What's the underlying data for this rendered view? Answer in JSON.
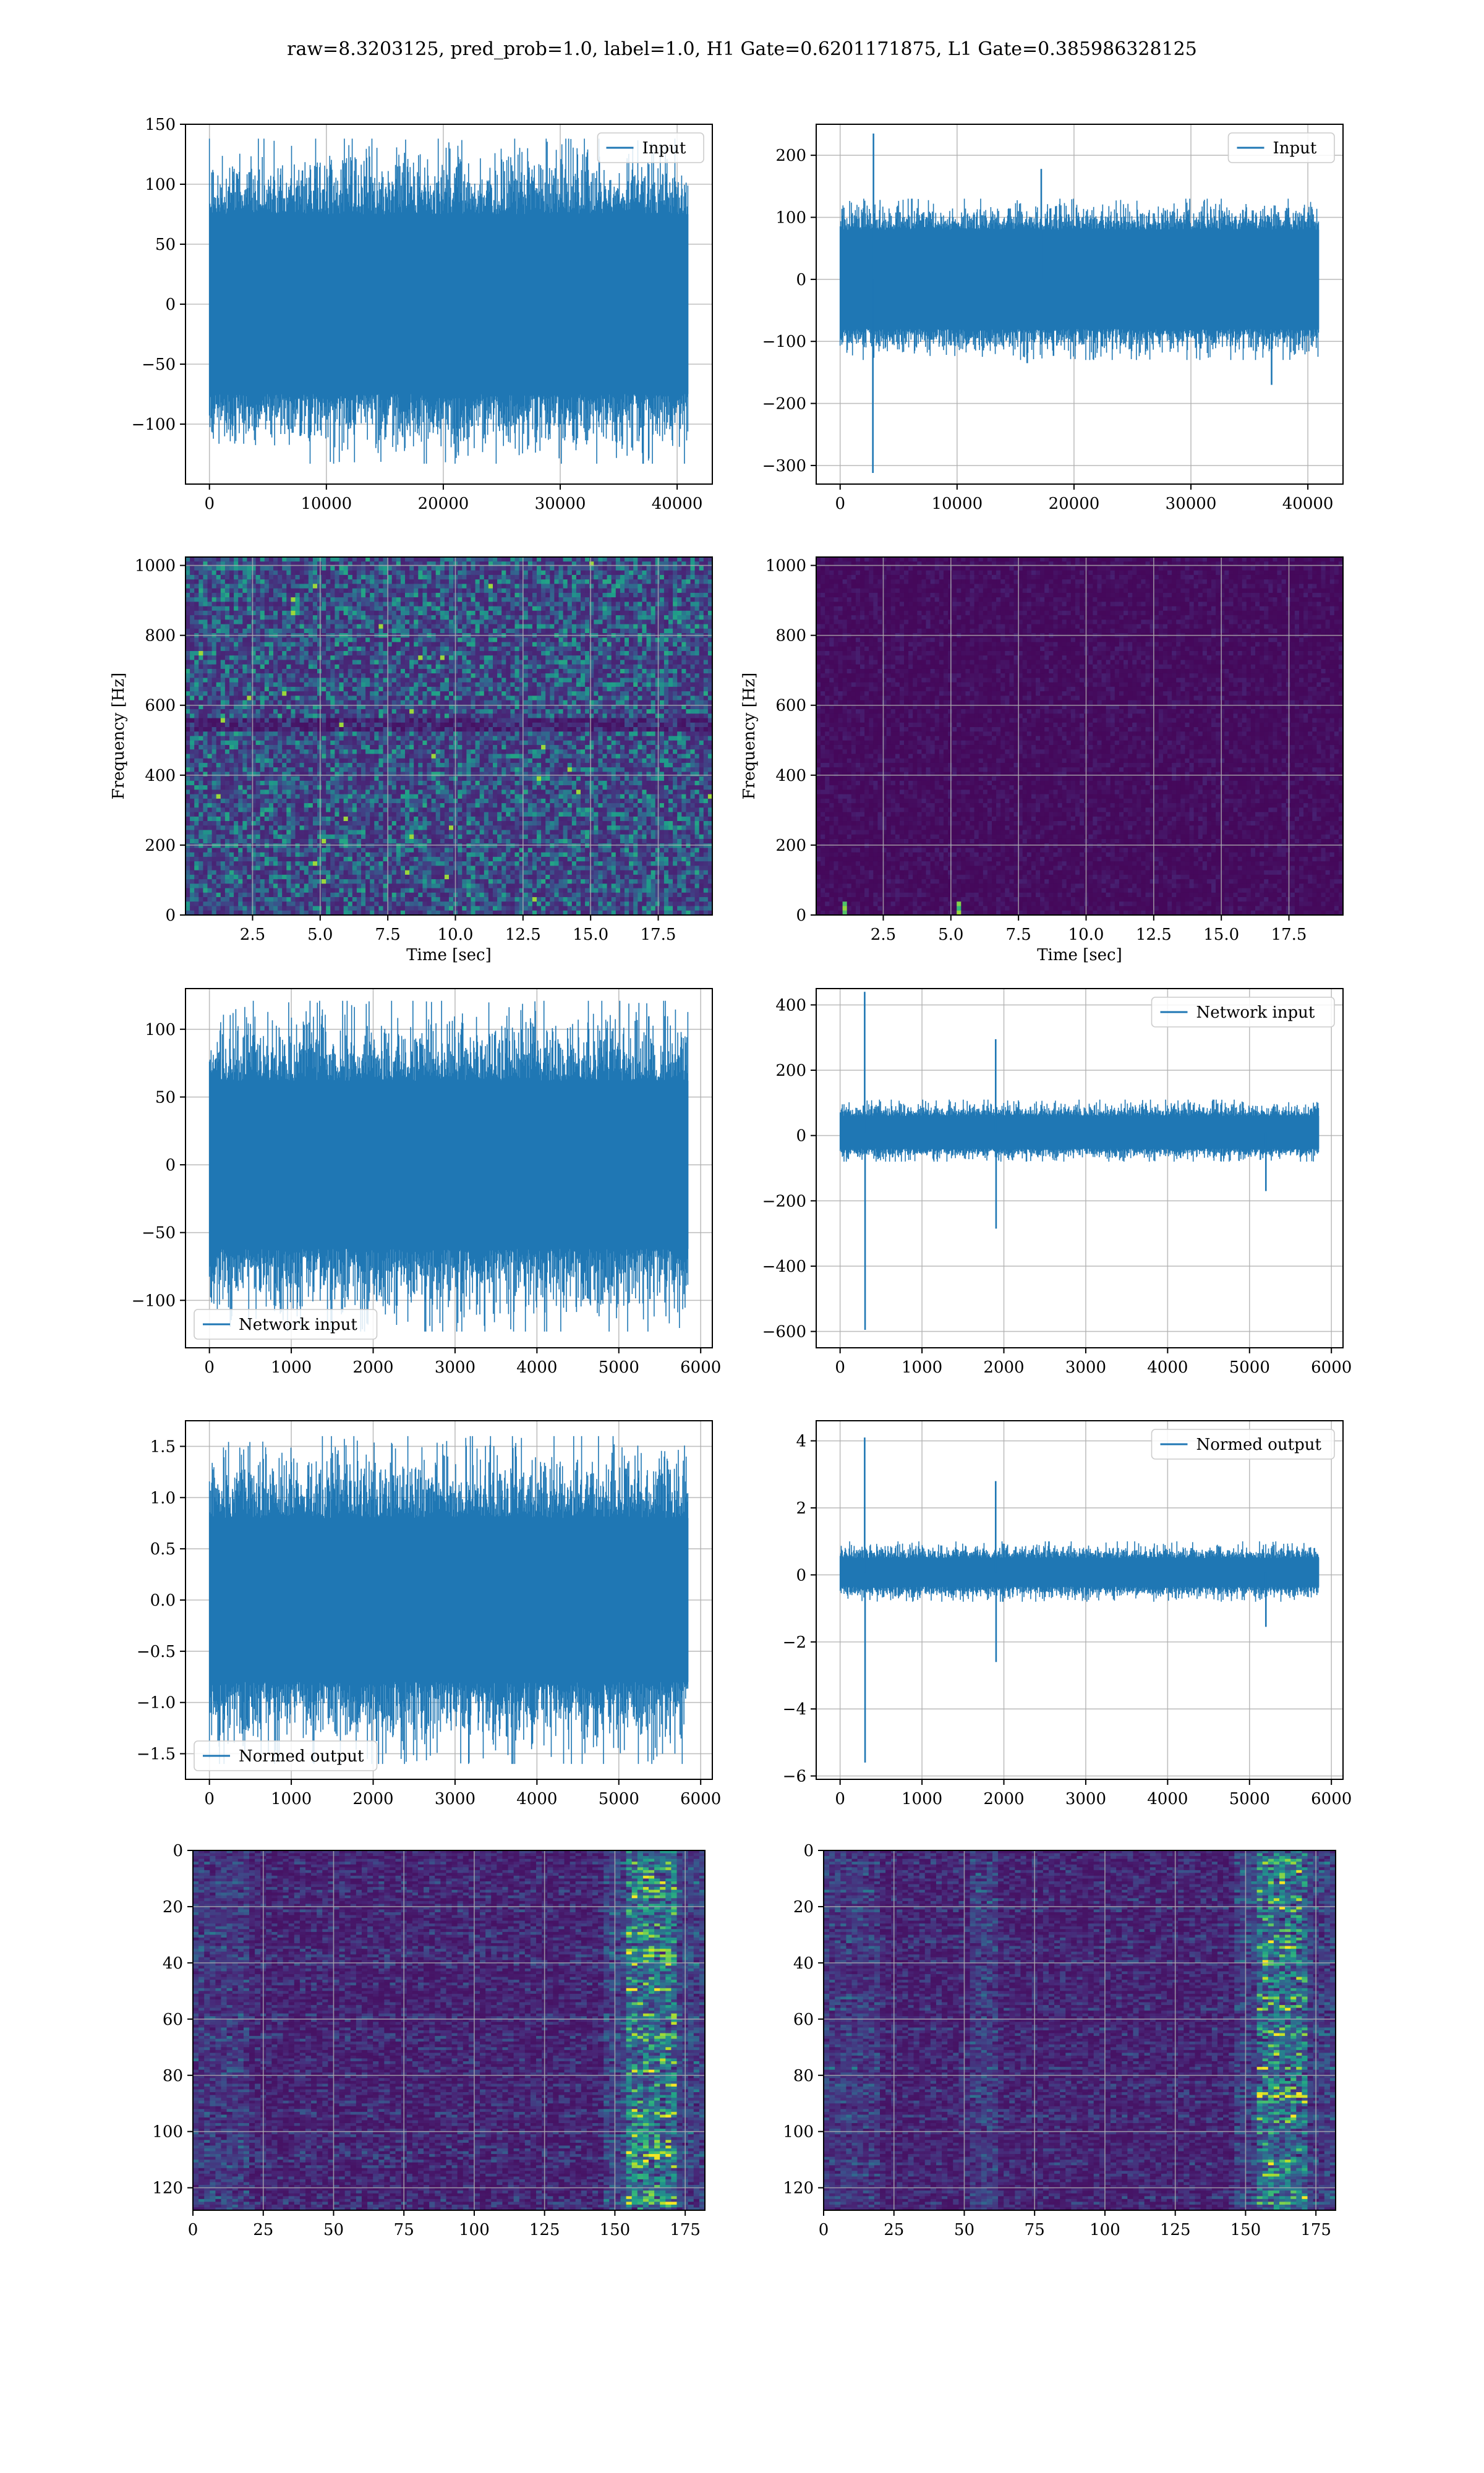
{
  "title": "raw=8.3203125, pred_prob=1.0, label=1.0, H1 Gate=0.6201171875, L1 Gate=0.385986328125",
  "colors": {
    "line": "#1f77b4",
    "grid": "#b0b0b0",
    "axes": "#000000"
  },
  "chart_data": [
    {
      "id": "h1-input",
      "type": "line",
      "x_range": [
        0,
        40960
      ],
      "xlim": [
        -2048,
        43008
      ],
      "ylim": [
        -150,
        150
      ],
      "xticks": [
        0,
        10000,
        20000,
        30000,
        40000
      ],
      "xtick_labels": [
        "0",
        "10000",
        "20000",
        "30000",
        "40000"
      ],
      "yticks": [
        -100,
        -50,
        0,
        50,
        100,
        150
      ],
      "ytick_labels": [
        "−100",
        "−50",
        "0",
        "50",
        "100",
        "150"
      ],
      "envelope": [
        -75,
        75
      ],
      "extremes": [
        -133,
        138
      ],
      "spikes": [],
      "series": [
        {
          "name": "Input"
        }
      ],
      "legend": "upper right",
      "xlabel": "",
      "ylabel": "",
      "grid": true
    },
    {
      "id": "l1-input",
      "type": "line",
      "x_range": [
        0,
        40960
      ],
      "xlim": [
        -2048,
        43008
      ],
      "ylim": [
        -330,
        250
      ],
      "xticks": [
        0,
        10000,
        20000,
        30000,
        40000
      ],
      "xtick_labels": [
        "0",
        "10000",
        "20000",
        "30000",
        "40000"
      ],
      "yticks": [
        -300,
        -200,
        -100,
        0,
        100,
        200
      ],
      "ytick_labels": [
        "−300",
        "−200",
        "−100",
        "0",
        "100",
        "200"
      ],
      "envelope": [
        -80,
        80
      ],
      "extremes": [
        -130,
        130
      ],
      "spikes": [
        [
          2800,
          -312
        ],
        [
          2850,
          235
        ],
        [
          17200,
          178
        ],
        [
          16000,
          -135
        ],
        [
          36900,
          -170
        ]
      ],
      "series": [
        {
          "name": "Input"
        }
      ],
      "legend": "upper right",
      "xlabel": "",
      "ylabel": "",
      "grid": true
    },
    {
      "id": "h1-spectrogram",
      "type": "heatmap",
      "xlim": [
        0.02,
        19.5
      ],
      "ylim": [
        0,
        1024
      ],
      "xticks": [
        2.5,
        5.0,
        7.5,
        10.0,
        12.5,
        15.0,
        17.5
      ],
      "xtick_labels": [
        "2.5",
        "5.0",
        "7.5",
        "10.0",
        "12.5",
        "15.0",
        "17.5"
      ],
      "yticks": [
        0,
        200,
        400,
        600,
        800,
        1000
      ],
      "ytick_labels": [
        "0",
        "200",
        "400",
        "600",
        "800",
        "1000"
      ],
      "xlabel": "Time [sec]",
      "ylabel": "Frequency [Hz]",
      "colormap": "viridis",
      "grid": true
    },
    {
      "id": "l1-spectrogram",
      "type": "heatmap",
      "xlim": [
        0.02,
        19.5
      ],
      "ylim": [
        0,
        1024
      ],
      "xticks": [
        2.5,
        5.0,
        7.5,
        10.0,
        12.5,
        15.0,
        17.5
      ],
      "xtick_labels": [
        "2.5",
        "5.0",
        "7.5",
        "10.0",
        "12.5",
        "15.0",
        "17.5"
      ],
      "yticks": [
        0,
        200,
        400,
        600,
        800,
        1000
      ],
      "ytick_labels": [
        "0",
        "200",
        "400",
        "600",
        "800",
        "1000"
      ],
      "xlabel": "Time [sec]",
      "ylabel": "Frequency [Hz]",
      "colormap": "viridis",
      "grid": true
    },
    {
      "id": "h1-network-input",
      "type": "line",
      "x_range": [
        0,
        5850
      ],
      "xlim": [
        -292,
        6142
      ],
      "ylim": [
        -135,
        130
      ],
      "xticks": [
        0,
        1000,
        2000,
        3000,
        4000,
        5000,
        6000
      ],
      "xtick_labels": [
        "0",
        "1000",
        "2000",
        "3000",
        "4000",
        "5000",
        "6000"
      ],
      "yticks": [
        -100,
        -50,
        0,
        50,
        100
      ],
      "ytick_labels": [
        "−100",
        "−50",
        "0",
        "50",
        "100"
      ],
      "envelope": [
        -62,
        62
      ],
      "extremes": [
        -123,
        121
      ],
      "spikes": [],
      "series": [
        {
          "name": "Network input"
        }
      ],
      "legend": "lower left",
      "xlabel": "",
      "ylabel": "",
      "grid": true
    },
    {
      "id": "l1-network-input",
      "type": "line",
      "x_range": [
        0,
        5850
      ],
      "xlim": [
        -292,
        6142
      ],
      "ylim": [
        -650,
        450
      ],
      "xticks": [
        0,
        1000,
        2000,
        3000,
        4000,
        5000,
        6000
      ],
      "xtick_labels": [
        "0",
        "1000",
        "2000",
        "3000",
        "4000",
        "5000",
        "6000"
      ],
      "yticks": [
        -600,
        -400,
        -200,
        0,
        200,
        400
      ],
      "ytick_labels": [
        "−600",
        "−400",
        "−200",
        "0",
        "200",
        "400"
      ],
      "envelope": [
        -40,
        60
      ],
      "extremes": [
        -80,
        110
      ],
      "spikes": [
        [
          300,
          440
        ],
        [
          305,
          -595
        ],
        [
          1900,
          295
        ],
        [
          1905,
          -285
        ],
        [
          5200,
          -170
        ]
      ],
      "series": [
        {
          "name": "Network input"
        }
      ],
      "legend": "upper right",
      "xlabel": "",
      "ylabel": "",
      "grid": true
    },
    {
      "id": "h1-normed-output",
      "type": "line",
      "x_range": [
        0,
        5850
      ],
      "xlim": [
        -292,
        6142
      ],
      "ylim": [
        -1.75,
        1.75
      ],
      "xticks": [
        0,
        1000,
        2000,
        3000,
        4000,
        5000,
        6000
      ],
      "xtick_labels": [
        "0",
        "1000",
        "2000",
        "3000",
        "4000",
        "5000",
        "6000"
      ],
      "yticks": [
        -1.5,
        -1.0,
        -0.5,
        0.0,
        0.5,
        1.0,
        1.5
      ],
      "ytick_labels": [
        "−1.5",
        "−1.0",
        "−0.5",
        "0.0",
        "0.5",
        "1.0",
        "1.5"
      ],
      "envelope": [
        -0.8,
        0.8
      ],
      "extremes": [
        -1.6,
        1.6
      ],
      "spikes": [],
      "series": [
        {
          "name": "Normed output"
        }
      ],
      "legend": "lower left",
      "xlabel": "",
      "ylabel": "",
      "grid": true
    },
    {
      "id": "l1-normed-output",
      "type": "line",
      "x_range": [
        0,
        5850
      ],
      "xlim": [
        -292,
        6142
      ],
      "ylim": [
        -6.1,
        4.6
      ],
      "xticks": [
        0,
        1000,
        2000,
        3000,
        4000,
        5000,
        6000
      ],
      "xtick_labels": [
        "0",
        "1000",
        "2000",
        "3000",
        "4000",
        "5000",
        "6000"
      ],
      "yticks": [
        -6,
        -4,
        -2,
        0,
        2,
        4
      ],
      "ytick_labels": [
        "−6",
        "−4",
        "−2",
        "0",
        "2",
        "4"
      ],
      "envelope": [
        -0.35,
        0.5
      ],
      "extremes": [
        -0.8,
        1.0
      ],
      "spikes": [
        [
          300,
          4.1
        ],
        [
          305,
          -5.6
        ],
        [
          1900,
          2.8
        ],
        [
          1905,
          -2.6
        ],
        [
          5200,
          -1.55
        ]
      ],
      "series": [
        {
          "name": "Normed output"
        }
      ],
      "legend": "upper right",
      "xlabel": "",
      "ylabel": "",
      "grid": true
    },
    {
      "id": "h1-feature-map",
      "type": "heatmap",
      "xlim": [
        0,
        182
      ],
      "ylim": [
        128,
        0
      ],
      "xticks": [
        0,
        25,
        50,
        75,
        100,
        125,
        150,
        175
      ],
      "xtick_labels": [
        "0",
        "25",
        "50",
        "75",
        "100",
        "125",
        "150",
        "175"
      ],
      "yticks": [
        0,
        20,
        40,
        60,
        80,
        100,
        120
      ],
      "ytick_labels": [
        "0",
        "20",
        "40",
        "60",
        "80",
        "100",
        "120"
      ],
      "colormap": "viridis",
      "grid": true
    },
    {
      "id": "l1-feature-map",
      "type": "heatmap",
      "xlim": [
        0,
        182
      ],
      "ylim": [
        128,
        0
      ],
      "xticks": [
        0,
        25,
        50,
        75,
        100,
        125,
        150,
        175
      ],
      "xtick_labels": [
        "0",
        "25",
        "50",
        "75",
        "100",
        "125",
        "150",
        "175"
      ],
      "yticks": [
        0,
        20,
        40,
        60,
        80,
        100,
        120
      ],
      "ytick_labels": [
        "0",
        "20",
        "40",
        "60",
        "80",
        "100",
        "120"
      ],
      "colormap": "viridis",
      "grid": true
    }
  ]
}
